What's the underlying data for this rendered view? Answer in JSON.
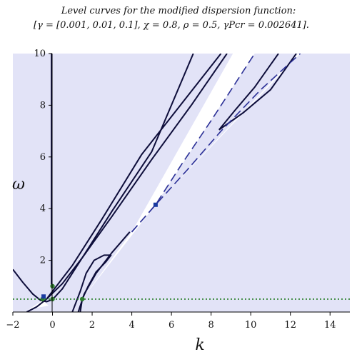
{
  "chart_data": {
    "type": "line",
    "title": "Level curves for the modified dispersion function:",
    "subtitle": "[γ = [0.001, 0.01, 0.1], χ = 0.8, ρ = 0.5, γPcr = 0.002641].",
    "xlabel": "k",
    "ylabel": "ω",
    "xlim": [
      -2,
      15
    ],
    "ylim": [
      0,
      10
    ],
    "x_ticks": [
      "−2",
      "0",
      "2",
      "4",
      "6",
      "8",
      "10",
      "12",
      "14"
    ],
    "y_ticks": [
      "2",
      "4",
      "6",
      "8",
      "10"
    ],
    "grid": false,
    "colors": {
      "shade": "#e2e3f7",
      "curve": "#0d0d3a",
      "dashed": "#2a2f96",
      "dotted": "#1f7a1f",
      "point": "#2e7d2e",
      "marker": "#1a3aa0"
    },
    "shaded_regions": [
      {
        "name": "left-region",
        "points": [
          [
            -2,
            0
          ],
          [
            -2,
            10
          ],
          [
            9.1,
            10
          ],
          [
            4,
            3.1
          ],
          [
            1.5,
            0.5
          ],
          [
            0.95,
            0.03
          ],
          [
            0,
            0.12
          ],
          [
            -0.5,
            0.45
          ],
          [
            -1.2,
            0.1
          ],
          [
            -2,
            0
          ]
        ]
      },
      {
        "name": "bottom-band",
        "points": [
          [
            -2,
            0
          ],
          [
            15,
            0
          ],
          [
            15,
            0.5
          ],
          [
            1.5,
            0.5
          ],
          [
            -1.2,
            0.1
          ],
          [
            -2,
            0
          ]
        ]
      },
      {
        "name": "right-wedge",
        "points": [
          [
            5.2,
            4.15
          ],
          [
            10.2,
            10
          ],
          [
            12.4,
            10
          ],
          [
            5.2,
            4.15
          ]
        ]
      },
      {
        "name": "right-region",
        "points": [
          [
            15,
            0.5
          ],
          [
            15,
            10
          ],
          [
            12.5,
            10
          ],
          [
            5.2,
            4.15
          ],
          [
            1.5,
            0.5
          ],
          [
            15,
            0.5
          ]
        ]
      }
    ],
    "curves": [
      {
        "name": "vertical-axis-curve",
        "style": "solid",
        "points": [
          [
            -0.05,
            10
          ],
          [
            -0.05,
            1.0
          ]
        ]
      },
      {
        "name": "hyperbola-left",
        "style": "solid",
        "points": [
          [
            -2,
            1.65
          ],
          [
            -1.5,
            1.15
          ],
          [
            -1.0,
            0.7
          ],
          [
            -0.6,
            0.45
          ],
          [
            -0.3,
            0.4
          ],
          [
            0,
            0.48
          ],
          [
            0.5,
            0.9
          ],
          [
            1.5,
            2.1
          ],
          [
            3,
            3.9
          ],
          [
            5,
            6.2
          ],
          [
            7.1,
            10
          ]
        ]
      },
      {
        "name": "hyperbola-inner",
        "style": "solid",
        "points": [
          [
            -0.3,
            0.5
          ],
          [
            0,
            0.8
          ],
          [
            1,
            1.8
          ],
          [
            2.5,
            3.6
          ],
          [
            4.5,
            6.1
          ],
          [
            8.5,
            10
          ]
        ]
      },
      {
        "name": "outer-branch",
        "style": "solid",
        "points": [
          [
            -1.3,
            0
          ],
          [
            -0.8,
            0.2
          ],
          [
            -0.3,
            0.5
          ],
          [
            0.5,
            1.1
          ],
          [
            1.5,
            2.1
          ],
          [
            3,
            3.7
          ],
          [
            5,
            5.9
          ],
          [
            7,
            8.0
          ],
          [
            8.8,
            10
          ]
        ]
      },
      {
        "name": "loop-small",
        "style": "solid",
        "points": [
          [
            1.0,
            0.0
          ],
          [
            1.4,
            0.8
          ],
          [
            1.7,
            1.5
          ],
          [
            2.1,
            2.0
          ],
          [
            2.6,
            2.2
          ],
          [
            2.95,
            2.2
          ],
          [
            2.7,
            1.95
          ],
          [
            2.2,
            1.55
          ],
          [
            1.8,
            1.0
          ],
          [
            1.5,
            0.5
          ],
          [
            1.4,
            0.0
          ]
        ]
      },
      {
        "name": "loop-large",
        "style": "solid",
        "points": [
          [
            1.3,
            0.0
          ],
          [
            1.6,
            0.7
          ],
          [
            2.2,
            1.5
          ],
          [
            3.0,
            2.3
          ],
          [
            3.9,
            3.1
          ]
        ]
      },
      {
        "name": "wedge-upper-solid",
        "style": "solid",
        "points": [
          [
            8.4,
            7.05
          ],
          [
            9.2,
            7.8
          ],
          [
            10.2,
            8.7
          ],
          [
            11.4,
            10
          ]
        ]
      },
      {
        "name": "wedge-lower-solid",
        "style": "solid",
        "points": [
          [
            8.4,
            7.05
          ],
          [
            9.6,
            7.7
          ],
          [
            11.0,
            8.6
          ],
          [
            12.3,
            10
          ]
        ]
      },
      {
        "name": "dashed-upper",
        "style": "dashed",
        "points": [
          [
            4.0,
            3.1
          ],
          [
            5.2,
            4.15
          ],
          [
            6.5,
            5.7
          ],
          [
            8.0,
            7.4
          ],
          [
            10.2,
            10
          ]
        ]
      },
      {
        "name": "dashed-lower",
        "style": "dashed",
        "points": [
          [
            4.0,
            3.1
          ],
          [
            5.2,
            4.15
          ],
          [
            6.8,
            5.5
          ],
          [
            8.5,
            7.0
          ],
          [
            10.5,
            8.6
          ],
          [
            12.5,
            10
          ]
        ]
      },
      {
        "name": "cutoff-line",
        "style": "dotted",
        "points": [
          [
            -2,
            0.5
          ],
          [
            15,
            0.5
          ]
        ]
      }
    ],
    "points": [
      {
        "name": "point-a",
        "x": -0.5,
        "y": 0.5
      },
      {
        "name": "point-b",
        "x": 0.0,
        "y": 0.5
      },
      {
        "name": "point-c",
        "x": 0.0,
        "y": 1.0
      },
      {
        "name": "point-d",
        "x": 1.5,
        "y": 0.5
      }
    ],
    "markers": [
      {
        "name": "marker-square-1",
        "x": -0.45,
        "y": 0.6
      },
      {
        "name": "marker-square-2",
        "x": 5.2,
        "y": 4.15
      }
    ]
  }
}
